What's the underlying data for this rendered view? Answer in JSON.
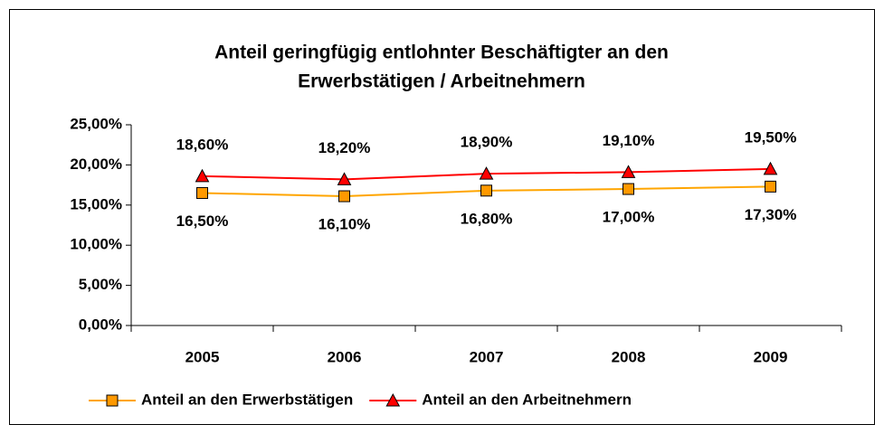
{
  "chart_data": {
    "type": "line",
    "title": [
      "Anteil geringfügig entlohnter Beschäftigter an den",
      "Erwerbstätigen / Arbeitnehmern"
    ],
    "categories": [
      "2005",
      "2006",
      "2007",
      "2008",
      "2009"
    ],
    "series": [
      {
        "name": "Anteil an den Erwerbstätigen",
        "color": "#FFA500",
        "marker": "square",
        "marker_color": "#FF9900",
        "values": [
          16.5,
          16.1,
          16.8,
          17.0,
          17.3
        ],
        "value_labels": [
          "16,50%",
          "16,10%",
          "16,80%",
          "17,00%",
          "17,30%"
        ]
      },
      {
        "name": "Anteil an den Arbeitnehmern",
        "color": "#FF0000",
        "marker": "triangle",
        "marker_color": "#FF0000",
        "values": [
          18.6,
          18.2,
          18.9,
          19.1,
          19.5
        ],
        "value_labels": [
          "18,60%",
          "18,20%",
          "18,90%",
          "19,10%",
          "19,50%"
        ]
      }
    ],
    "ylim": [
      0,
      25
    ],
    "yticks": [
      {
        "value": 0,
        "label": "0,00%"
      },
      {
        "value": 5,
        "label": "5,00%"
      },
      {
        "value": 10,
        "label": "10,00%"
      },
      {
        "value": 15,
        "label": "15,00%"
      },
      {
        "value": 20,
        "label": "20,00%"
      },
      {
        "value": 25,
        "label": "25,00%"
      }
    ],
    "grid": false,
    "legend": "bottom"
  }
}
